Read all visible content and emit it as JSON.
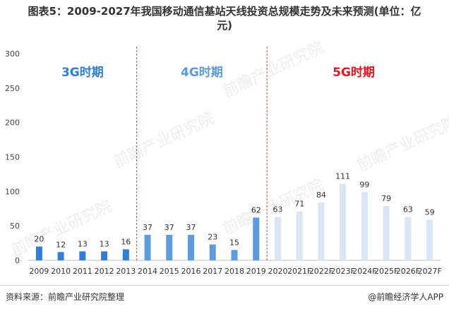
{
  "title_line1": "图表5：2009-2027年我国移动通信基站天线投资总规模走势及未来预测(单位：亿",
  "title_line2": "元)",
  "source": "资料来源：前瞻产业研究院整理",
  "brand": "@前瞻经济学人APP",
  "watermark": "前瞻产业研究院",
  "colors": {
    "g3": "#2F7ED8",
    "g4": "#5B9BE0",
    "g5": "#DAE6F5",
    "label_3g": "#2F7ED8",
    "label_4g": "#5B9BE0",
    "label_5g": "#E8141E",
    "divider": "#C0504D"
  },
  "chart_data": {
    "type": "bar",
    "categories": [
      "2009",
      "2010",
      "2011",
      "2012",
      "2013",
      "2014",
      "2015",
      "2016",
      "2017",
      "2018",
      "2019",
      "2020",
      "2021F",
      "2022F",
      "2023F",
      "2024F",
      "2025F",
      "2026F",
      "2027F"
    ],
    "values": [
      20,
      12,
      13,
      13,
      16,
      37,
      37,
      37,
      23,
      15,
      62,
      63,
      71,
      84,
      111,
      99,
      79,
      63,
      59
    ],
    "period": [
      "3G",
      "3G",
      "3G",
      "3G",
      "3G",
      "4G",
      "4G",
      "4G",
      "4G",
      "4G",
      "4G",
      "5G",
      "5G",
      "5G",
      "5G",
      "5G",
      "5G",
      "5G",
      "5G"
    ],
    "ylim": [
      0,
      300
    ],
    "yticks": [
      0,
      50,
      100,
      150,
      200,
      250,
      300
    ],
    "annotations": [
      {
        "text": "3G时期",
        "period": "3G"
      },
      {
        "text": "4G时期",
        "period": "4G"
      },
      {
        "text": "5G时期",
        "period": "5G"
      }
    ],
    "grid": false
  }
}
